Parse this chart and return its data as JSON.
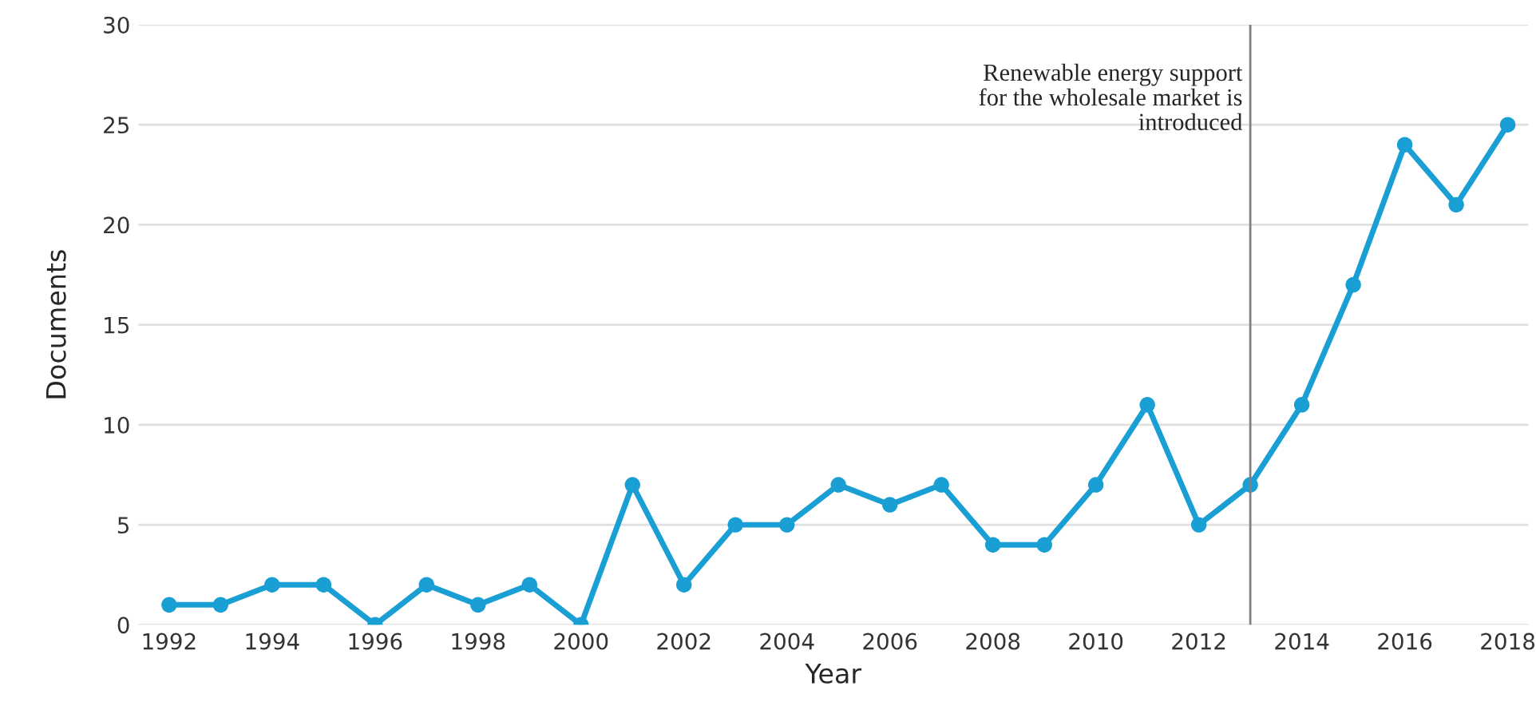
{
  "chart_data": {
    "type": "line",
    "xlabel": "Year",
    "ylabel": "Documents",
    "x": [
      1992,
      1993,
      1994,
      1995,
      1996,
      1997,
      1998,
      1999,
      2000,
      2001,
      2002,
      2003,
      2004,
      2005,
      2006,
      2007,
      2008,
      2009,
      2010,
      2011,
      2012,
      2013,
      2014,
      2015,
      2016,
      2017,
      2018
    ],
    "series": [
      {
        "color": "#1a9fd4",
        "values": [
          1,
          1,
          2,
          2,
          0,
          2,
          1,
          2,
          0,
          7,
          2,
          5,
          5,
          7,
          6,
          7,
          4,
          4,
          7,
          11,
          5,
          7,
          11,
          17,
          24,
          21,
          25
        ]
      }
    ],
    "xlim": [
      1991.4,
      2018.4
    ],
    "xticks": [
      1992,
      1994,
      1996,
      1998,
      2000,
      2002,
      2004,
      2006,
      2008,
      2010,
      2012,
      2014,
      2016,
      2018
    ],
    "ylim": [
      0,
      30
    ],
    "yticks": [
      0,
      5,
      10,
      15,
      20,
      25,
      30
    ],
    "grid": "y",
    "marker": "circle",
    "line_style": "solid",
    "ref_lines": [
      {
        "axis": "x",
        "value": 2013,
        "label": "Renewable energy support\nfor the wholesale market is\nintroduced",
        "color": "#808080",
        "line_style": "solid"
      }
    ]
  }
}
